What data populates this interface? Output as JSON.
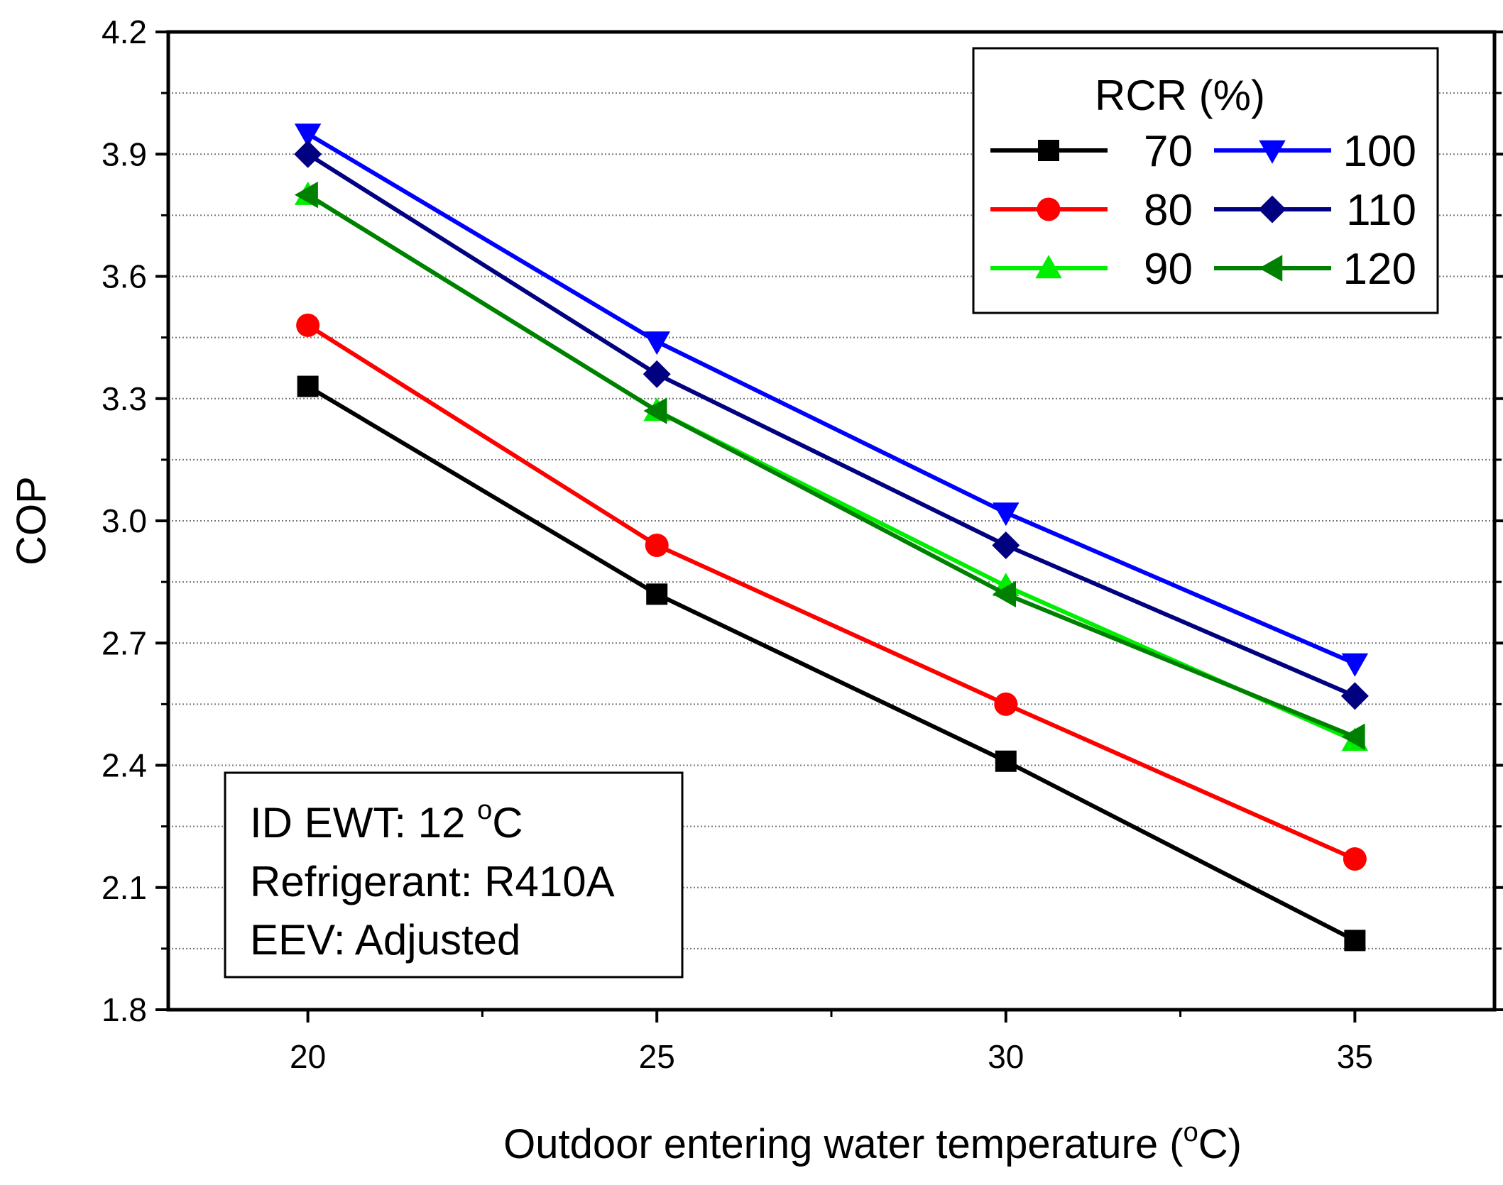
{
  "chart_data": {
    "type": "line",
    "xlabel": "Outdoor entering water temperature (",
    "xlabel_sup": "o",
    "xlabel_unit": "C)",
    "ylabel": "COP",
    "xlim": [
      18,
      37
    ],
    "ylim": [
      1.8,
      4.2
    ],
    "x": [
      20,
      25,
      30,
      35
    ],
    "x_ticks": [
      "20",
      "25",
      "30",
      "35"
    ],
    "y_ticks": [
      "1.8",
      "2.1",
      "2.4",
      "2.7",
      "3.0",
      "3.3",
      "3.6",
      "3.9",
      "4.2"
    ],
    "y_tick_values": [
      1.8,
      2.1,
      2.4,
      2.7,
      3.0,
      3.3,
      3.6,
      3.9,
      4.2
    ],
    "grid": "horizontal dotted",
    "legend": {
      "title": "RCR (%)",
      "placement": "top-right"
    },
    "series": [
      {
        "name": "70",
        "color": "#000000",
        "marker": "square",
        "values": [
          3.33,
          2.82,
          2.41,
          1.97
        ]
      },
      {
        "name": "80",
        "color": "#ff0000",
        "marker": "circle",
        "values": [
          3.48,
          2.94,
          2.55,
          2.17
        ]
      },
      {
        "name": "90",
        "color": "#00ee00",
        "marker": "triangle-up",
        "values": [
          3.8,
          3.27,
          2.84,
          2.46
        ]
      },
      {
        "name": "100",
        "color": "#0000ff",
        "marker": "triangle-down",
        "values": [
          3.95,
          3.44,
          3.02,
          2.65
        ]
      },
      {
        "name": "110",
        "color": "#000080",
        "marker": "diamond",
        "values": [
          3.9,
          3.36,
          2.94,
          2.57
        ]
      },
      {
        "name": "120",
        "color": "#008000",
        "marker": "triangle-left",
        "values": [
          3.8,
          3.27,
          2.82,
          2.47
        ]
      }
    ],
    "annotation": {
      "line1": "ID EWT: 12 ",
      "line1_sup": "o",
      "line1_unit": "C",
      "line2": "Refrigerant: R410A",
      "line3": "EEV: Adjusted"
    }
  }
}
